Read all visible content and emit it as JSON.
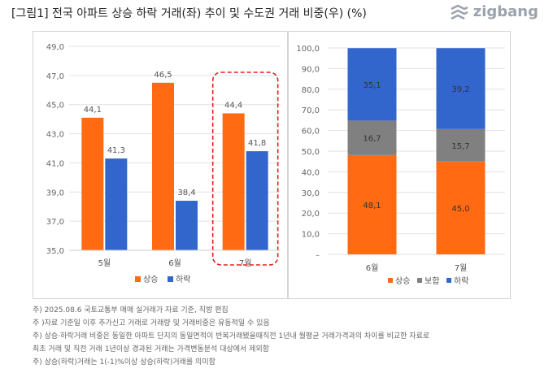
{
  "header": {
    "title": "[그림1] 전국 아파트 상승 하락 거래(좌) 추이 및 수도권 거래 비중(우) (%)",
    "logo_text": "zigbang"
  },
  "chart_data": [
    {
      "type": "bar",
      "categories": [
        "5월",
        "6월",
        "7월"
      ],
      "series": [
        {
          "name": "상승",
          "values": [
            44.1,
            46.5,
            44.4
          ],
          "labels": [
            "44,1",
            "46,5",
            "44,4"
          ],
          "color": "#FF6A13"
        },
        {
          "name": "하락",
          "values": [
            41.3,
            38.4,
            41.8
          ],
          "labels": [
            "41,3",
            "38,4",
            "41,8"
          ],
          "color": "#3366CC"
        }
      ],
      "ylim": [
        35,
        49
      ],
      "yticks": [
        "35,0",
        "37,0",
        "39,0",
        "41,0",
        "43,0",
        "45,0",
        "47,0",
        "49,0"
      ],
      "grid": true,
      "legend": "bottom",
      "highlight_category": "7월"
    },
    {
      "type": "bar",
      "stacked": true,
      "categories": [
        "6월",
        "7월"
      ],
      "series": [
        {
          "name": "상승",
          "values": [
            48.1,
            45.0
          ],
          "labels": [
            "48,1",
            "45,0"
          ],
          "color": "#FF6A13"
        },
        {
          "name": "보합",
          "values": [
            16.7,
            15.7
          ],
          "labels": [
            "16,7",
            "15,7"
          ],
          "color": "#808080"
        },
        {
          "name": "하락",
          "values": [
            35.1,
            39.2
          ],
          "labels": [
            "35,1",
            "39,2"
          ],
          "color": "#3366CC"
        }
      ],
      "ylim": [
        0,
        100
      ],
      "yticks": [
        "–",
        "10,0",
        "20,0",
        "30,0",
        "40,0",
        "50,0",
        "60,0",
        "70,0",
        "80,0",
        "90,0",
        "100,0"
      ],
      "grid": true,
      "legend": "bottom"
    }
  ],
  "notes": [
    "주) 2025.08.6   국토교통부 매매 실거래가 자료 기준, 직방 편집",
    "주 )자료 기준일 이후 추가신고 거래로 거래량 및 거래비중은 유동적일 수 있음",
    "주) 상승·하락거래 비중은 동일한 아파트 단지의 동일면적이 반복거래됐을때직전 1년내 월평균 거래가격과의 차이를 비교한 자료로",
    "최초 거래 및 직전 거래 1년이상 경과된 거래는 가격변동분석 대상에서 제외함",
    "주) 상승(하락)거래는 1(-1)%이상 상승(하락)거래를 의미함"
  ]
}
